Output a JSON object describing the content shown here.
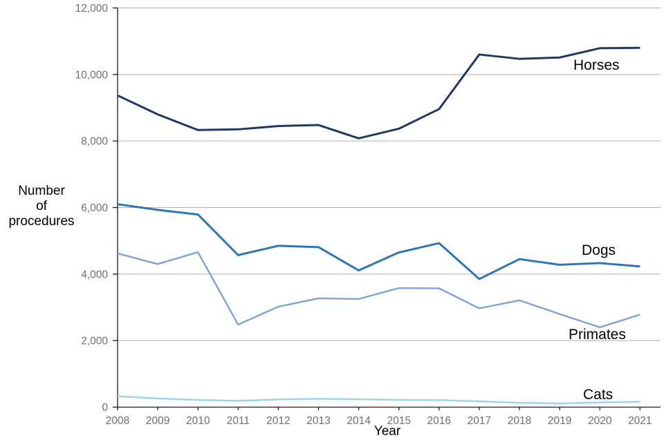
{
  "chart_data": {
    "type": "line",
    "title": "",
    "xlabel": "Year",
    "ylabel": "Number of procedures",
    "ylabel_lines": [
      "Number",
      "of",
      "procedures"
    ],
    "x": [
      2008,
      2009,
      2010,
      2011,
      2012,
      2013,
      2014,
      2015,
      2016,
      2017,
      2018,
      2019,
      2020,
      2021
    ],
    "xtick_labels": [
      "2008",
      "2009",
      "2010",
      "2011",
      "2012",
      "2013",
      "2014",
      "2015",
      "2016",
      "2017",
      "2018",
      "2019",
      "2020",
      "2021"
    ],
    "ylim": [
      0,
      12000
    ],
    "ytick_values": [
      0,
      2000,
      4000,
      6000,
      8000,
      10000,
      12000
    ],
    "ytick_labels": [
      "0",
      "2,000",
      "4,000",
      "6,000",
      "8,000",
      "10,000",
      "12,000"
    ],
    "grid": true,
    "legend_position": "inline-end-labels",
    "series": [
      {
        "name": "Horses",
        "color": "#1f3864",
        "values": [
          9370,
          8800,
          8330,
          8350,
          8450,
          8480,
          8080,
          8370,
          8960,
          10600,
          10470,
          10510,
          10790,
          10800
        ]
      },
      {
        "name": "Dogs",
        "color": "#2e75b6",
        "values": [
          6100,
          5930,
          5790,
          4570,
          4850,
          4810,
          4110,
          4650,
          4930,
          3850,
          4450,
          4280,
          4330,
          4230
        ]
      },
      {
        "name": "Primates",
        "color": "#84a3d8",
        "values": [
          4620,
          4300,
          4660,
          2480,
          3020,
          3270,
          3250,
          3580,
          3570,
          2970,
          3210,
          2800,
          2400,
          2780
        ]
      },
      {
        "name": "Cats",
        "color": "#9ed2f2",
        "values": [
          330,
          260,
          215,
          190,
          230,
          250,
          235,
          215,
          210,
          175,
          130,
          110,
          140,
          160
        ]
      }
    ]
  },
  "style_colors": {
    "gridline": "#b0b0b0",
    "axis_line": "#1a1a1a",
    "tick_text": "#6f6f6f",
    "label_text": "#000000"
  }
}
